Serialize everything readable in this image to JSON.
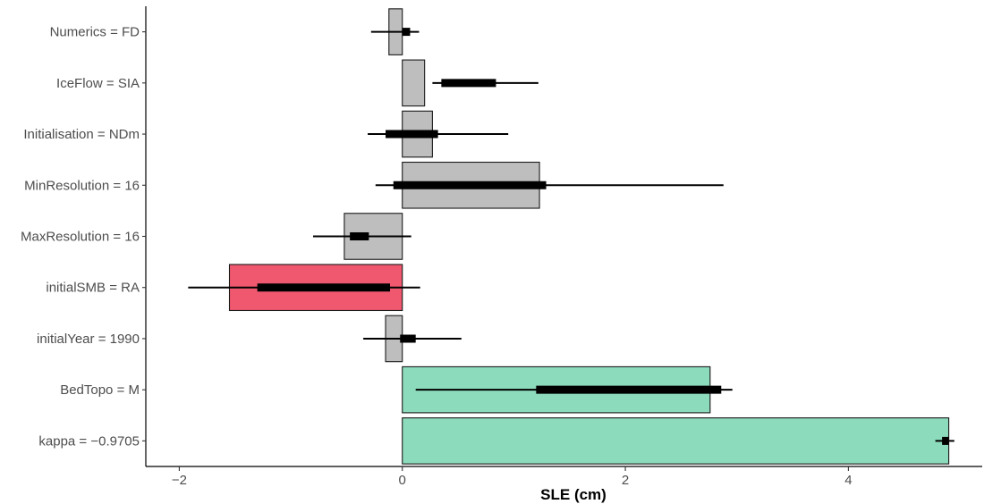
{
  "chart_data": {
    "type": "bar",
    "orientation": "horizontal",
    "title": "",
    "xlabel": "SLE (cm)",
    "ylabel": "",
    "xlim": [
      -2.3,
      5.2
    ],
    "xticks": [
      -2,
      0,
      2,
      4
    ],
    "xtick_labels": [
      "−2",
      "0",
      "2",
      "4"
    ],
    "grid": false,
    "categories": [
      "Numerics = FD",
      "IceFlow = SIA",
      "Initialisation = NDm",
      "MinResolution = 16",
      "MaxResolution = 16",
      "initialSMB = RA",
      "initialYear = 1990",
      "BedTopo = M",
      "kappa = −0.9705"
    ],
    "values": [
      -0.12,
      0.2,
      0.27,
      1.23,
      -0.52,
      -1.55,
      -0.15,
      2.76,
      4.9
    ],
    "intervals_thick": [
      [
        0.0,
        0.07
      ],
      [
        0.35,
        0.84
      ],
      [
        -0.15,
        0.32
      ],
      [
        -0.08,
        1.29
      ],
      [
        -0.47,
        -0.3
      ],
      [
        -1.3,
        -0.11
      ],
      [
        -0.02,
        0.12
      ],
      [
        1.2,
        2.86
      ],
      [
        4.84,
        4.9
      ]
    ],
    "intervals_thin": [
      [
        -0.28,
        0.15
      ],
      [
        0.27,
        1.22
      ],
      [
        -0.31,
        0.95
      ],
      [
        -0.24,
        2.88
      ],
      [
        -0.8,
        0.08
      ],
      [
        -1.92,
        0.16
      ],
      [
        -0.35,
        0.53
      ],
      [
        0.12,
        2.96
      ],
      [
        4.78,
        4.95
      ]
    ],
    "fill_colors": [
      "#bebebe",
      "#bebebe",
      "#bebebe",
      "#bebebe",
      "#bebebe",
      "#f0586f",
      "#bebebe",
      "#8ddbbd",
      "#8ddbbd"
    ],
    "outline_color": "#1a1a1a",
    "interval_color": "#000000"
  }
}
